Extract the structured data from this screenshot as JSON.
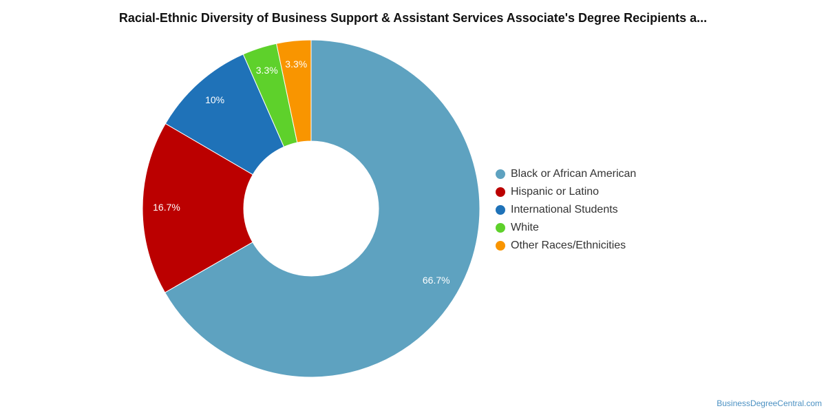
{
  "chart_data": {
    "type": "pie",
    "donut": true,
    "title": "Racial-Ethnic Diversity of Business Support & Assistant Services Associate's Degree Recipients a...",
    "categories": [
      "Black or African American",
      "Hispanic or Latino",
      "International Students",
      "White",
      "Other Races/Ethnicities"
    ],
    "values": [
      66.7,
      16.7,
      10,
      3.3,
      3.3
    ],
    "value_labels": [
      "66.7%",
      "16.7%",
      "10%",
      "3.3%",
      "3.3%"
    ],
    "colors": [
      "#5ea2c0",
      "#bb0000",
      "#1f72b8",
      "#5ed12b",
      "#f99500"
    ],
    "legend_position": "right"
  },
  "credit": "BusinessDegreeCentral.com"
}
